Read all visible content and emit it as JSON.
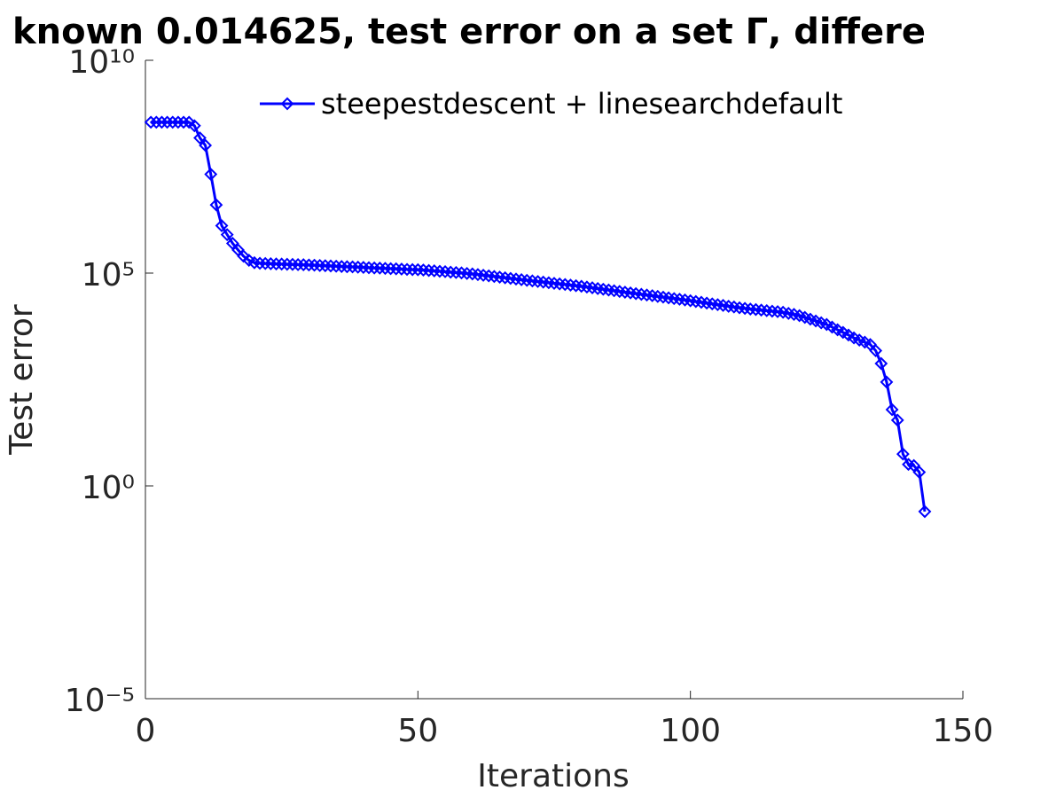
{
  "chart_data": {
    "type": "line",
    "title": "known 0.014625, test error on a set  Γ, differe",
    "x_label": "Iterations",
    "y_label": "Test error",
    "yscale": "log",
    "xlim": [
      0,
      150
    ],
    "xticks": [
      0,
      50,
      100,
      150
    ],
    "ylim": [
      1e-05,
      10000000000
    ],
    "yticks": [
      {
        "value": 1e-05,
        "label": "10⁻⁵"
      },
      {
        "value": 1,
        "label": "10⁰"
      },
      {
        "value": 100000,
        "label": "10⁵"
      },
      {
        "value": 10000000000,
        "label": "10¹⁰"
      }
    ],
    "legend_loc": "top",
    "grid": false,
    "x": [
      1,
      2,
      3,
      4,
      5,
      6,
      7,
      8,
      9,
      10,
      11,
      12,
      13,
      14,
      15,
      16,
      17,
      18,
      19,
      20,
      21,
      22,
      23,
      24,
      25,
      26,
      27,
      28,
      29,
      30,
      31,
      32,
      33,
      34,
      35,
      36,
      37,
      38,
      39,
      40,
      41,
      42,
      43,
      44,
      45,
      46,
      47,
      48,
      49,
      50,
      51,
      52,
      53,
      54,
      55,
      56,
      57,
      58,
      59,
      60,
      61,
      62,
      63,
      64,
      65,
      66,
      67,
      68,
      69,
      70,
      71,
      72,
      73,
      74,
      75,
      76,
      77,
      78,
      79,
      80,
      81,
      82,
      83,
      84,
      85,
      86,
      87,
      88,
      89,
      90,
      91,
      92,
      93,
      94,
      95,
      96,
      97,
      98,
      99,
      100,
      101,
      102,
      103,
      104,
      105,
      106,
      107,
      108,
      109,
      110,
      111,
      112,
      113,
      114,
      115,
      116,
      117,
      118,
      119,
      120,
      121,
      122,
      123,
      124,
      125,
      126,
      127,
      128,
      129,
      130,
      131,
      132,
      133,
      134,
      135,
      136,
      137,
      138,
      139,
      140,
      141,
      142,
      143
    ],
    "series": [
      {
        "name": "steepestdescent + linesearchdefault",
        "color": "#0000ff",
        "values": [
          350000000,
          350000000,
          350000000,
          350000000,
          350000000,
          350000000,
          350000000,
          350000000,
          290000000,
          150000000,
          100000000,
          21000000,
          4000000,
          1300000,
          800000,
          500000,
          350000,
          250000,
          200000,
          175000,
          170000,
          168000,
          166000,
          164000,
          163000,
          161000,
          160000,
          158000,
          157000,
          155000,
          153000,
          151000,
          149000,
          147000,
          145000,
          143000,
          141000,
          140000,
          138000,
          136000,
          134000,
          132000,
          131000,
          129000,
          127000,
          126000,
          124000,
          122000,
          121000,
          120000,
          118000,
          115000,
          113000,
          110000,
          108000,
          105000,
          103000,
          101000,
          98000,
          95500,
          92300,
          89100,
          86100,
          83200,
          80400,
          77600,
          75000,
          72400,
          70000,
          67600,
          65500,
          63400,
          61400,
          59400,
          57500,
          55700,
          53900,
          52200,
          50500,
          49000,
          47000,
          45200,
          43400,
          41700,
          40000,
          38500,
          37000,
          35500,
          34200,
          32900,
          31700,
          30500,
          29400,
          28300,
          27200,
          26200,
          25200,
          24300,
          23400,
          22400,
          21500,
          20600,
          19700,
          18900,
          18100,
          17400,
          16600,
          16000,
          15300,
          14800,
          14300,
          13900,
          13500,
          13100,
          12700,
          12400,
          12000,
          11300,
          10700,
          10000,
          9100,
          8250,
          7500,
          6800,
          6200,
          5370,
          4660,
          4040,
          3500,
          3000,
          2670,
          2380,
          2100,
          1500,
          750,
          275,
          62,
          35,
          5.6,
          3.2,
          3.0,
          2.1,
          0.25
        ]
      }
    ]
  }
}
